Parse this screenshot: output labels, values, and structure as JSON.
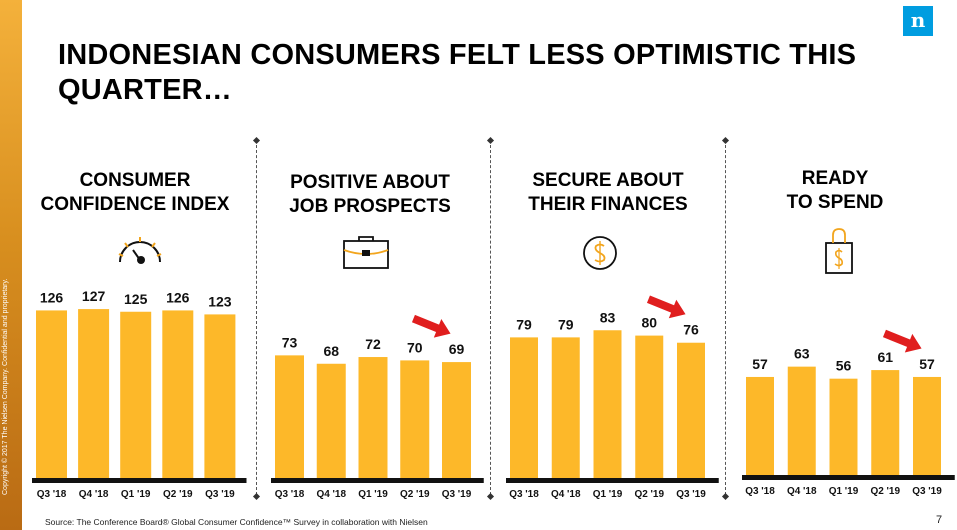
{
  "title": "INDONESIAN CONSUMERS FELT LESS OPTIMISTIC THIS QUARTER…",
  "logo": "n",
  "sidebar_text": "Copyright © 2017 The Nielsen Company. Confidential and proprietary.",
  "source": "Source: The Conference Board® Global Consumer Confidence™ Survey in collaboration with Nielsen",
  "page_number": "7",
  "colors": {
    "bar": "#fdb829",
    "baseline": "#111111",
    "arrow": "#e01e1e",
    "logo": "#009de0"
  },
  "panels": [
    {
      "title": "CONSUMER\nCONFIDENCE INDEX",
      "icon": "speedometer-icon"
    },
    {
      "title": "POSITIVE ABOUT\nJOB PROSPECTS",
      "icon": "briefcase-icon"
    },
    {
      "title": "SECURE ABOUT\nTHEIR FINANCES",
      "icon": "dollar-coin-icon"
    },
    {
      "title": "READY\nTO SPEND",
      "icon": "shopping-bag-icon"
    }
  ],
  "chart_data": [
    {
      "type": "bar",
      "title": "CONSUMER CONFIDENCE INDEX",
      "categories": [
        "Q3 '18",
        "Q4 '18",
        "Q1 '19",
        "Q2 '19",
        "Q3 '19"
      ],
      "values": [
        126,
        127,
        125,
        126,
        123
      ],
      "decline_arrow": false
    },
    {
      "type": "bar",
      "title": "POSITIVE ABOUT JOB PROSPECTS",
      "categories": [
        "Q3 '18",
        "Q4 '18",
        "Q1 '19",
        "Q2 '19",
        "Q3 '19"
      ],
      "values": [
        73,
        68,
        72,
        70,
        69
      ],
      "decline_arrow": true
    },
    {
      "type": "bar",
      "title": "SECURE ABOUT THEIR FINANCES",
      "categories": [
        "Q3 '18",
        "Q4 '18",
        "Q1 '19",
        "Q2 '19",
        "Q3 '19"
      ],
      "values": [
        79,
        79,
        83,
        80,
        76
      ],
      "decline_arrow": true
    },
    {
      "type": "bar",
      "title": "READY TO SPEND",
      "categories": [
        "Q3 '18",
        "Q4 '18",
        "Q1 '19",
        "Q2 '19",
        "Q3 '19"
      ],
      "values": [
        57,
        63,
        56,
        61,
        57
      ],
      "decline_arrow": true
    }
  ]
}
